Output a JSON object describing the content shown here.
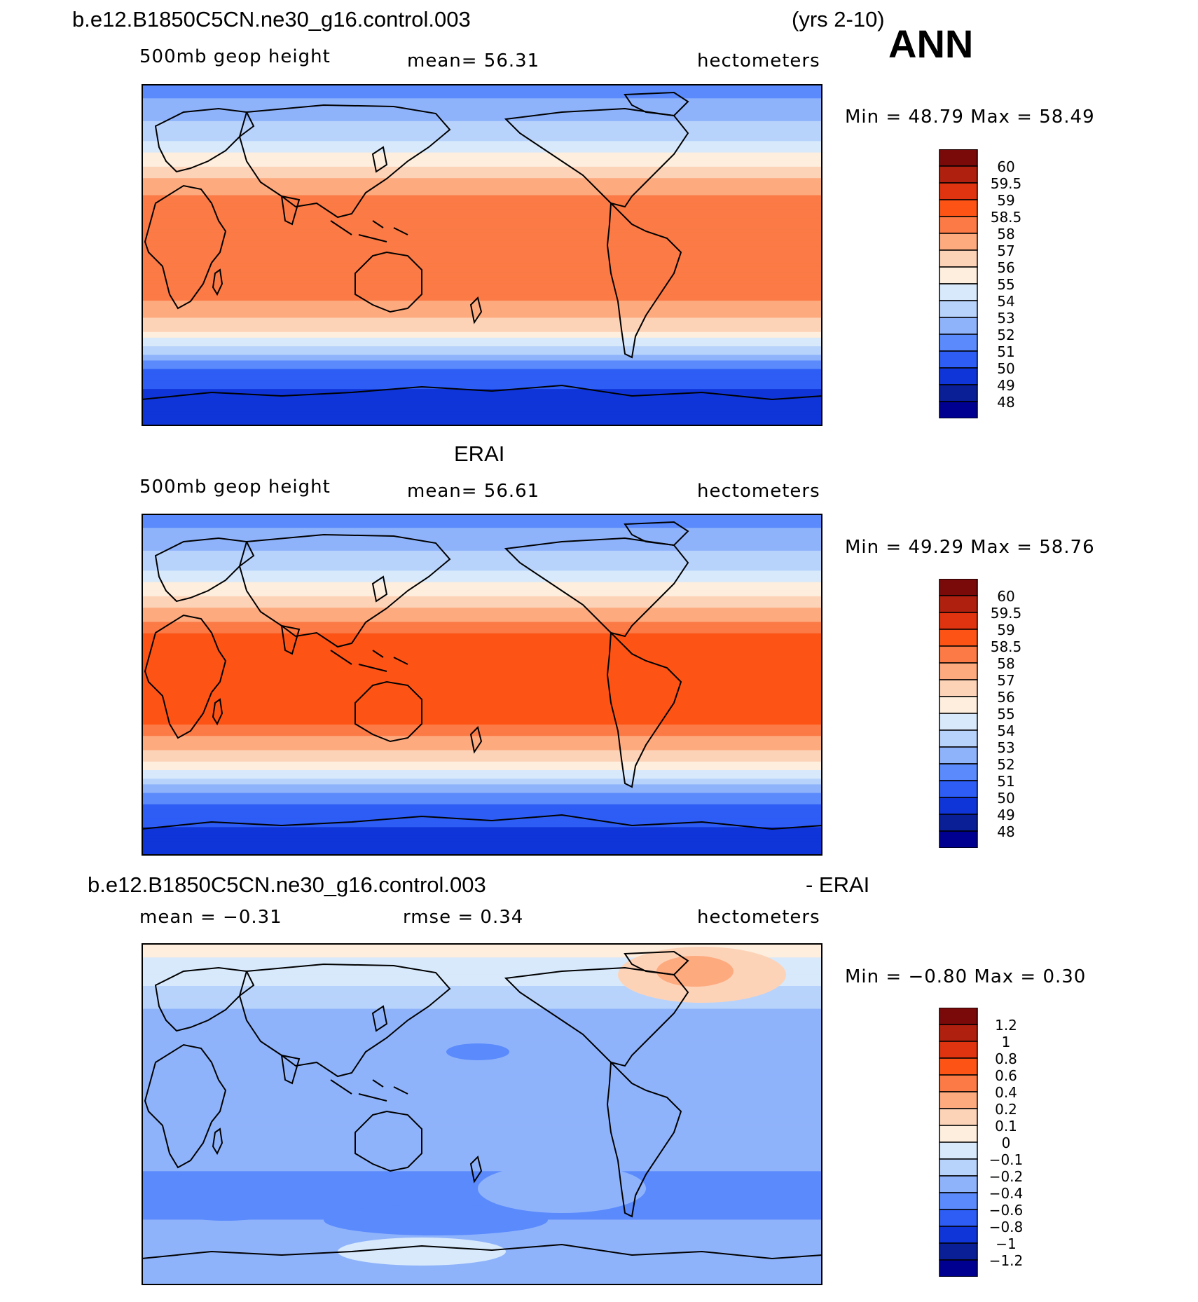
{
  "header": {
    "case_name": "b.e12.B1850C5CN.ne30_g16.control.003",
    "years": "(yrs 2-10)",
    "season": "ANN"
  },
  "panels": [
    {
      "title": "",
      "left_label": "500mb  geop  height",
      "center_label": "mean=   56.31",
      "right_label": "hectometers",
      "minmax": "Min  =    48.79  Max  =    58.49"
    },
    {
      "title": "ERAI",
      "left_label": "500mb  geop  height",
      "center_label": "mean=   56.61",
      "right_label": "hectometers",
      "minmax": "Min  =    49.29  Max  =    58.76"
    },
    {
      "title": "b.e12.B1850C5CN.ne30_g16.control.003",
      "title_right": "- ERAI",
      "left_label": "mean  =   −0.31",
      "center_label": "rmse  =     0.34",
      "right_label": "hectometers",
      "minmax": "Min  =   −0.80  Max  =     0.30"
    }
  ],
  "colorbars": {
    "field_levels": [
      "60",
      "59.5",
      "59",
      "58.5",
      "58",
      "57",
      "56",
      "55",
      "54",
      "53",
      "52",
      "51",
      "50",
      "49",
      "48"
    ],
    "diff_levels": [
      "1.2",
      "1",
      "0.8",
      "0.6",
      "0.4",
      "0.2",
      "0.1",
      "0",
      "−0.1",
      "−0.2",
      "−0.4",
      "−0.6",
      "−0.8",
      "−1",
      "−1.2"
    ],
    "colors": [
      "#7a0a0a",
      "#b0200e",
      "#e0330f",
      "#fd5416",
      "#fb7a45",
      "#fdaa7f",
      "#fdd3b8",
      "#fdeedd",
      "#d7e9fb",
      "#b8d3fb",
      "#8fb3fb",
      "#5a8afc",
      "#2d5df5",
      "#0f35d9",
      "#0a1e96",
      "#000090"
    ]
  },
  "chart_data": [
    {
      "type": "heatmap",
      "title": "500mb  geop  height",
      "units": "hectometers",
      "mean": 56.31,
      "min": 48.79,
      "max": 58.49,
      "x_extent_deg_lon": [
        0,
        360
      ],
      "y_extent_deg_lat": [
        -90,
        90
      ],
      "levels": [
        48,
        49,
        50,
        51,
        52,
        53,
        54,
        55,
        56,
        57,
        58,
        58.5,
        59,
        59.5,
        60
      ],
      "zonal_profile": {
        "lat": [
          90,
          75,
          60,
          50,
          40,
          30,
          20,
          0,
          -20,
          -30,
          -40,
          -50,
          -60,
          -75,
          -90
        ],
        "value": [
          51.5,
          52.5,
          54,
          55.5,
          57,
          58.2,
          58.4,
          58.4,
          58.3,
          57.5,
          56,
          53.5,
          51,
          49.5,
          49
        ]
      }
    },
    {
      "type": "heatmap",
      "title": "500mb  geop  height",
      "units": "hectometers",
      "mean": 56.61,
      "min": 49.29,
      "max": 58.76,
      "x_extent_deg_lon": [
        0,
        360
      ],
      "y_extent_deg_lat": [
        -90,
        90
      ],
      "levels": [
        48,
        49,
        50,
        51,
        52,
        53,
        54,
        55,
        56,
        57,
        58,
        58.5,
        59,
        59.5,
        60
      ],
      "zonal_profile": {
        "lat": [
          90,
          75,
          60,
          50,
          40,
          30,
          20,
          0,
          -20,
          -30,
          -40,
          -50,
          -60,
          -75,
          -90
        ],
        "value": [
          51.5,
          52.5,
          54,
          55.5,
          57.2,
          58.4,
          58.7,
          58.7,
          58.6,
          57.8,
          56.2,
          53.8,
          51.3,
          50,
          49.7
        ]
      }
    },
    {
      "type": "heatmap",
      "title": "b.e12.B1850C5CN.ne30_g16.control.003 - ERAI",
      "units": "hectometers",
      "mean": -0.31,
      "rmse": 0.34,
      "min": -0.8,
      "max": 0.3,
      "x_extent_deg_lon": [
        0,
        360
      ],
      "y_extent_deg_lat": [
        -90,
        90
      ],
      "levels": [
        -1.2,
        -1,
        -0.8,
        -0.6,
        -0.4,
        -0.2,
        -0.1,
        0,
        0.1,
        0.2,
        0.4,
        0.6,
        0.8,
        1,
        1.2
      ],
      "zonal_profile": {
        "lat": [
          90,
          75,
          60,
          50,
          40,
          30,
          20,
          0,
          -20,
          -30,
          -40,
          -50,
          -60,
          -75,
          -90
        ],
        "value": [
          0.05,
          -0.05,
          -0.15,
          -0.25,
          -0.3,
          -0.3,
          -0.3,
          -0.3,
          -0.35,
          -0.4,
          -0.5,
          -0.45,
          -0.35,
          -0.3,
          -0.4
        ]
      }
    }
  ]
}
